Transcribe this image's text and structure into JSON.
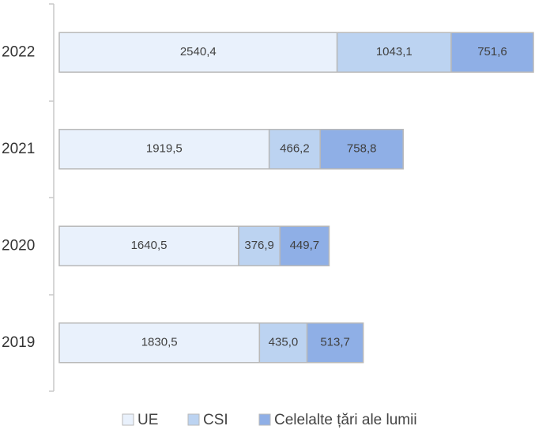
{
  "chart_data": {
    "type": "stacked-bar-horizontal",
    "categories": [
      "2022",
      "2021",
      "2020",
      "2019"
    ],
    "series": [
      {
        "name": "UE",
        "color": "#e9f1fc",
        "values": [
          2540.4,
          1919.5,
          1640.5,
          1830.5
        ],
        "value_labels": [
          "2540,4",
          "1919,5",
          "1640,5",
          "1830,5"
        ]
      },
      {
        "name": "CSI",
        "color": "#bcd3f1",
        "values": [
          1043.1,
          466.2,
          376.9,
          435.0
        ],
        "value_labels": [
          "1043,1",
          "466,2",
          "376,9",
          "435,0"
        ]
      },
      {
        "name": "Celelalte țări ale lumii",
        "color": "#8fafe6",
        "values": [
          751.6,
          758.8,
          449.7,
          513.7
        ],
        "value_labels": [
          "751,6",
          "758,8",
          "449,7",
          "513,7"
        ]
      }
    ]
  }
}
